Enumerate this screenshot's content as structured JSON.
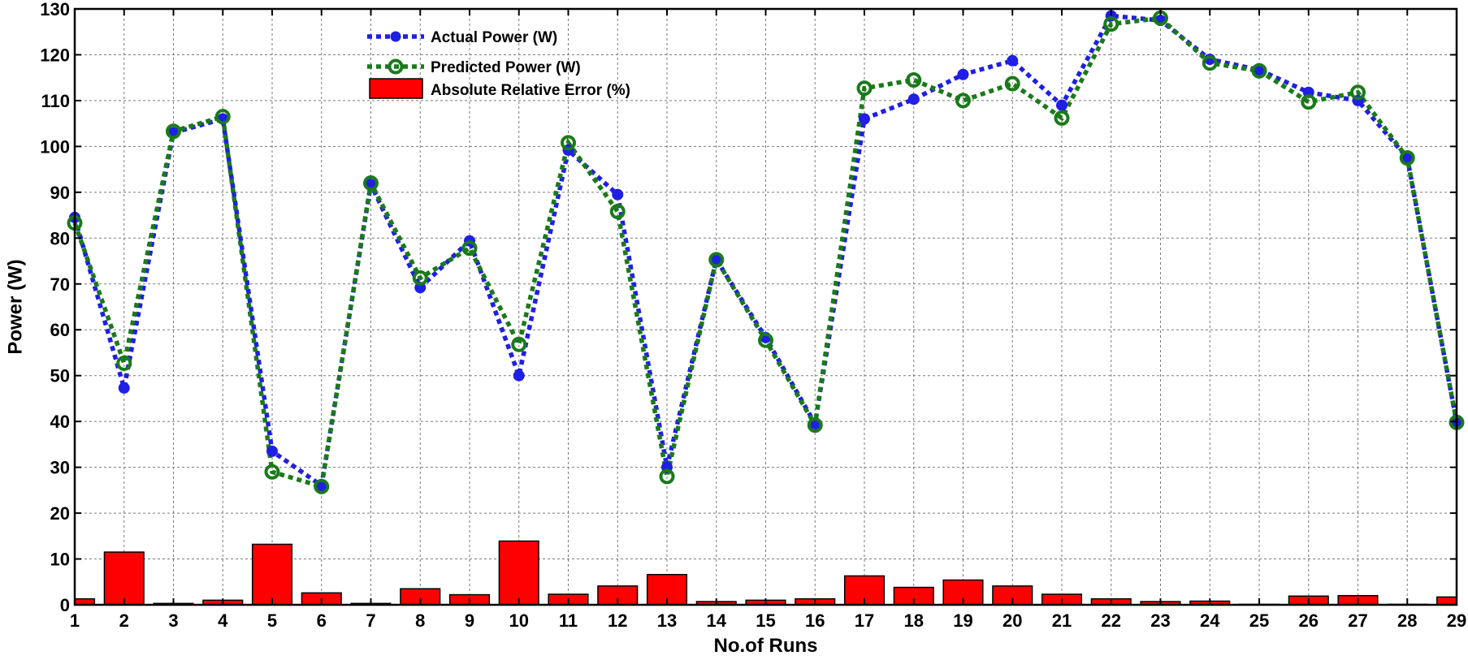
{
  "chart_data": {
    "type": "line",
    "title": "",
    "xlabel": "No.of Runs",
    "ylabel": "Power (W)",
    "xlim": [
      1,
      29
    ],
    "ylim": [
      0,
      130
    ],
    "xticks": [
      1,
      2,
      3,
      4,
      5,
      6,
      7,
      8,
      9,
      10,
      11,
      12,
      13,
      14,
      15,
      16,
      17,
      18,
      19,
      20,
      21,
      22,
      23,
      24,
      25,
      26,
      27,
      28,
      29
    ],
    "yticks": [
      0,
      10,
      20,
      30,
      40,
      50,
      60,
      70,
      80,
      90,
      100,
      110,
      120,
      130
    ],
    "grid": true,
    "legend_position": "top-left",
    "x": [
      1,
      2,
      3,
      4,
      5,
      6,
      7,
      8,
      9,
      10,
      11,
      12,
      13,
      14,
      15,
      16,
      17,
      18,
      19,
      20,
      21,
      22,
      23,
      24,
      25,
      26,
      27,
      28,
      29
    ],
    "series": [
      {
        "name": "Actual Power (W)",
        "kind": "line",
        "line_style": "dotted",
        "marker": "filled-circle",
        "color": "#1f1fe6",
        "values": [
          84.5,
          47.3,
          103.0,
          106.0,
          33.5,
          26.0,
          91.7,
          69.2,
          79.4,
          50.0,
          99.2,
          89.5,
          30.0,
          75.3,
          58.3,
          39.5,
          106.0,
          110.3,
          115.7,
          118.7,
          109.0,
          128.5,
          127.5,
          119.0,
          116.7,
          111.8,
          110.0,
          97.5,
          39.8
        ]
      },
      {
        "name": "Predicted Power (W)",
        "kind": "line",
        "line_style": "dotted",
        "marker": "open-circle",
        "color": "#1a7a1a",
        "values": [
          83.3,
          52.7,
          103.3,
          106.5,
          29.0,
          25.8,
          92.0,
          71.3,
          77.8,
          56.8,
          100.8,
          85.8,
          28.0,
          75.3,
          57.7,
          39.2,
          112.7,
          114.5,
          110.0,
          113.7,
          106.2,
          126.7,
          128.0,
          118.2,
          116.5,
          109.7,
          111.8,
          97.5,
          39.8
        ]
      },
      {
        "name": "Absolute Relative Error (%)",
        "kind": "bar",
        "color": "#ff0000",
        "values": [
          1.3,
          11.5,
          0.3,
          1.0,
          13.2,
          2.6,
          0.3,
          3.5,
          2.2,
          13.9,
          2.3,
          4.1,
          6.6,
          0.7,
          1.0,
          1.3,
          6.3,
          3.8,
          5.4,
          4.1,
          2.3,
          1.3,
          0.7,
          0.8,
          0.1,
          1.9,
          2.0,
          0.1,
          1.7
        ]
      }
    ]
  }
}
